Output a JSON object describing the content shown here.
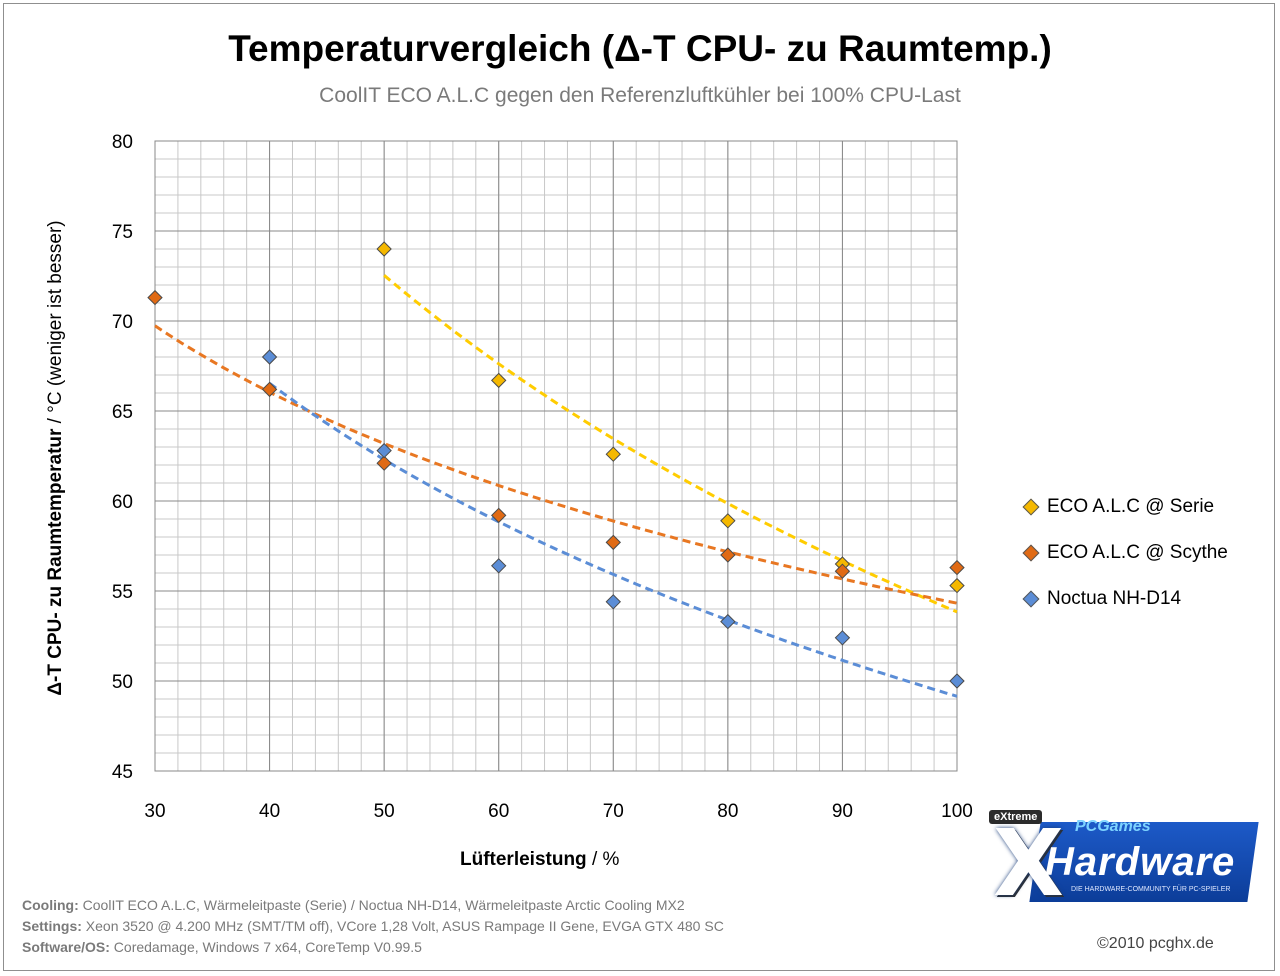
{
  "chart_data": {
    "type": "scatter",
    "title": "Temperaturvergleich  (Δ-T CPU- zu Raumtemp.)",
    "subtitle": "CoolIT ECO A.L.C gegen den Referenzluftkühler bei 100% CPU-Last",
    "ylabel_bold": "Δ-T CPU- zu Raumtemperatur",
    "ylabel_rest": "  / °C (weniger ist besser)",
    "xlabel_bold": "Lüfterleistung",
    "xlabel_rest": "  / %",
    "xlim": [
      30,
      100
    ],
    "ylim": [
      45,
      80
    ],
    "x_ticks": [
      30,
      40,
      50,
      60,
      70,
      80,
      90,
      100
    ],
    "y_ticks": [
      45,
      50,
      55,
      60,
      65,
      70,
      75,
      80
    ],
    "grid": true,
    "legend_position": "right",
    "series": [
      {
        "name": "ECO A.L.C @ Serie",
        "color": "#f5b800",
        "trend_color": "#ffcc00",
        "x": [
          50,
          60,
          70,
          80,
          90,
          100
        ],
        "y": [
          74.0,
          66.7,
          62.6,
          58.9,
          56.5,
          55.3
        ]
      },
      {
        "name": "ECO A.L.C @ Scythe",
        "color": "#e06a14",
        "trend_color": "#e87722",
        "x": [
          30,
          40,
          50,
          60,
          70,
          80,
          90,
          100
        ],
        "y": [
          71.3,
          66.2,
          62.1,
          59.2,
          57.7,
          57.0,
          56.1,
          56.3
        ]
      },
      {
        "name": "Noctua NH-D14",
        "color": "#5b8dd6",
        "trend_color": "#5b8dd6",
        "x": [
          40,
          50,
          60,
          70,
          80,
          90,
          100
        ],
        "y": [
          68.0,
          62.8,
          56.4,
          54.4,
          53.3,
          52.4,
          50.0
        ]
      }
    ]
  },
  "footer": {
    "lines": [
      {
        "key": "Cooling:",
        "text": " CoolIT ECO A.L.C, Wärmeleitpaste (Serie) / Noctua NH-D14, Wärmeleitpaste Arctic Cooling MX2"
      },
      {
        "key": "Settings:",
        "text": " Xeon 3520 @ 4.200 MHz  (SMT/TM off), VCore 1,28 Volt, ASUS Rampage II Gene, EVGA GTX 480 SC"
      },
      {
        "key": "Software/OS:",
        "text": " Coredamage, Windows 7 x64, CoreTemp V0.99.5"
      }
    ]
  },
  "copyright": "©2010 pcghx.de",
  "logo": {
    "badge": "eXtreme",
    "x_letter": "X",
    "word": "Hardware",
    "games": "PCGames",
    "tagline": "DIE HARDWARE-COMMUNITY FÜR PC-SPIELER"
  }
}
